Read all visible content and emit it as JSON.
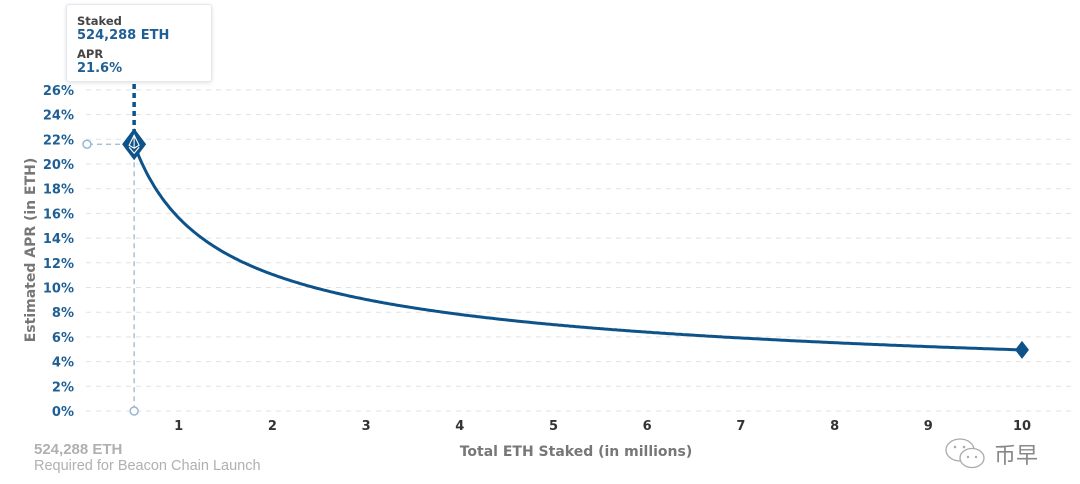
{
  "chart_data": {
    "type": "line",
    "xlabel": "Total ETH Staked  (in millions)",
    "ylabel": "Estimated APR  (in ETH)",
    "x_ticks": [
      "1",
      "2",
      "3",
      "4",
      "5",
      "6",
      "7",
      "8",
      "9",
      "10"
    ],
    "y_ticks": [
      "0%",
      "2%",
      "4%",
      "6%",
      "8%",
      "10%",
      "12%",
      "14%",
      "16%",
      "18%",
      "20%",
      "22%",
      "24%",
      "26%"
    ],
    "xlim": [
      0,
      10.3
    ],
    "ylim": [
      0,
      26
    ],
    "grid": "horizontal dashed",
    "series": [
      {
        "x": [
          0.524288,
          0.75,
          1,
          1.5,
          2,
          2.5,
          3,
          3.5,
          4,
          4.5,
          5,
          5.5,
          6,
          6.5,
          7,
          7.5,
          8,
          8.5,
          9,
          9.5,
          10
        ],
        "y": [
          21.6,
          18.06,
          15.64,
          12.77,
          11.06,
          9.89,
          9.03,
          8.36,
          7.82,
          7.37,
          6.99,
          6.67,
          6.39,
          6.13,
          5.91,
          5.71,
          5.53,
          5.36,
          5.21,
          5.08,
          4.95
        ]
      }
    ],
    "highlight": {
      "x": 0.524288,
      "y": 21.6
    },
    "endpoint": {
      "x": 10,
      "y": 4.95
    },
    "color": "#0d5289"
  },
  "tooltip": {
    "staked_label": "Staked",
    "staked_value": "524,288 ETH",
    "apr_label": "APR",
    "apr_value": "21.6%"
  },
  "annotation": {
    "value": "524,288 ETH",
    "description": "Required for Beacon Chain Launch"
  },
  "watermark": {
    "text": "币早",
    "icon": "wechat-icon"
  }
}
